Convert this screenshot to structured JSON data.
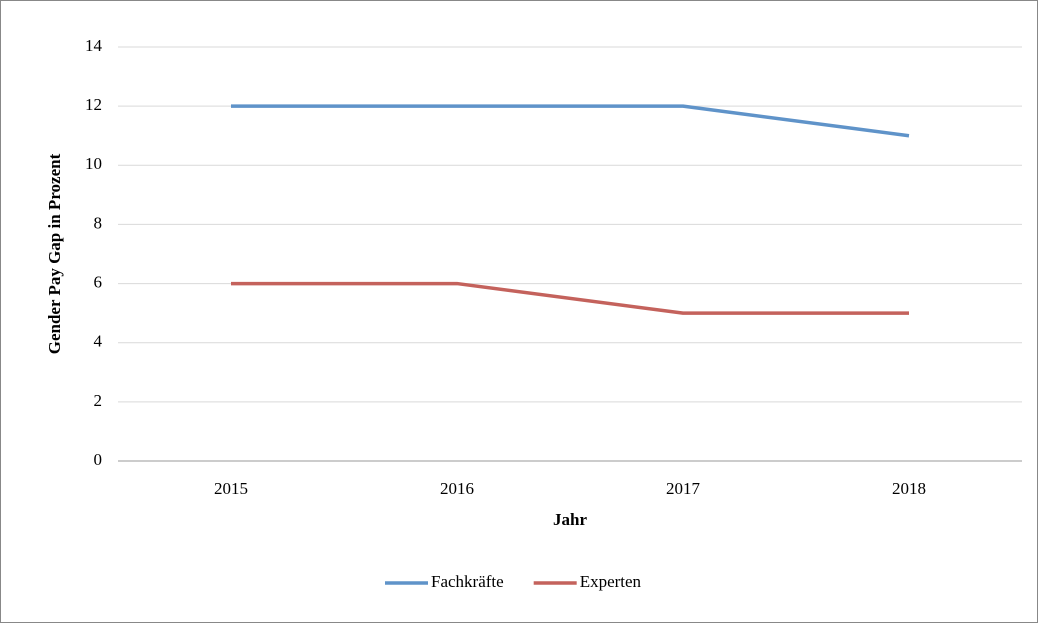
{
  "chart_data": {
    "type": "line",
    "categories": [
      "2015",
      "2016",
      "2017",
      "2018"
    ],
    "series": [
      {
        "name": "Fachkräfte",
        "color": "#5f93c9",
        "values": [
          12,
          12,
          12,
          11
        ]
      },
      {
        "name": "Experten",
        "color": "#c4625c",
        "values": [
          6,
          6,
          5,
          5
        ]
      }
    ],
    "ylim": [
      0,
      14
    ],
    "yticks": [
      0,
      2,
      4,
      6,
      8,
      10,
      12,
      14
    ],
    "ylabel": "Gender Pay Gap in Prozent",
    "xlabel": "Jahr",
    "grid": true,
    "legend": "bottom"
  }
}
